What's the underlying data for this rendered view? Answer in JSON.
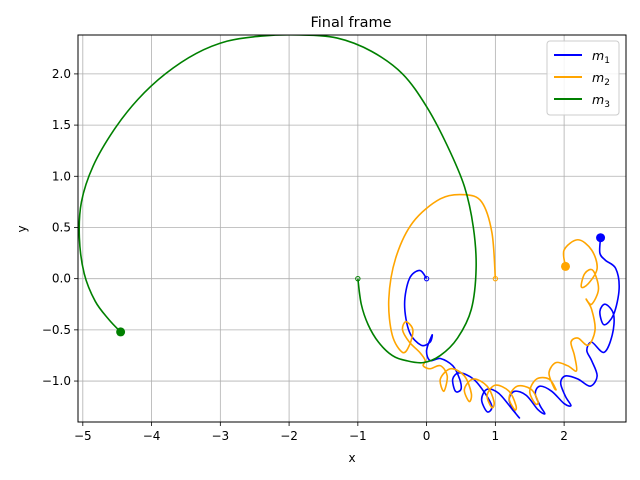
{
  "chart_data": {
    "type": "line",
    "title": "Final frame",
    "xlabel": "x",
    "ylabel": "y",
    "xlim": [
      -5.07,
      2.9
    ],
    "ylim": [
      -1.4,
      2.38
    ],
    "xticks": [
      -5,
      -4,
      -3,
      -2,
      -1,
      0,
      1,
      2
    ],
    "yticks": [
      -1.0,
      -0.5,
      0.0,
      0.5,
      1.0,
      1.5,
      2.0
    ],
    "xtick_labels": [
      "−5",
      "−4",
      "−3",
      "−2",
      "−1",
      "0",
      "1",
      "2"
    ],
    "ytick_labels": [
      "−1.0",
      "−0.5",
      "0.0",
      "0.5",
      "1.0",
      "1.5",
      "2.0"
    ],
    "grid": true,
    "legend_position": "top-right",
    "series": [
      {
        "name": "m",
        "subscript": "1",
        "color": "#0000ff",
        "start": [
          0.0,
          0.0
        ],
        "end": [
          2.53,
          0.4
        ],
        "x": [
          0.0,
          -0.1,
          -0.25,
          -0.32,
          -0.25,
          -0.08,
          0.05,
          0.08,
          0.0,
          0.05,
          0.2,
          0.38,
          0.48,
          0.5,
          0.42,
          0.38,
          0.48,
          0.68,
          0.85,
          0.95,
          0.88,
          0.8,
          0.88,
          1.05,
          1.25,
          1.35,
          1.28,
          1.2,
          1.28,
          1.45,
          1.62,
          1.72,
          1.65,
          1.58,
          1.65,
          1.82,
          2.0,
          2.1,
          2.02,
          1.95,
          2.02,
          2.2,
          2.38,
          2.48,
          2.4,
          2.33,
          2.4,
          2.58,
          2.7,
          2.72,
          2.6,
          2.52,
          2.58,
          2.72,
          2.8,
          2.75,
          2.6,
          2.52,
          2.53
        ],
        "y": [
          0.0,
          0.08,
          0.0,
          -0.25,
          -0.52,
          -0.65,
          -0.62,
          -0.55,
          -0.7,
          -0.8,
          -0.78,
          -0.85,
          -0.98,
          -1.08,
          -1.1,
          -0.98,
          -0.92,
          -0.98,
          -1.12,
          -1.25,
          -1.3,
          -1.18,
          -1.08,
          -1.12,
          -1.28,
          -1.36,
          -1.3,
          -1.18,
          -1.1,
          -1.14,
          -1.28,
          -1.32,
          -1.24,
          -1.12,
          -1.05,
          -1.1,
          -1.22,
          -1.24,
          -1.15,
          -1.02,
          -0.95,
          -0.98,
          -1.05,
          -0.95,
          -0.8,
          -0.7,
          -0.62,
          -0.72,
          -0.55,
          -0.35,
          -0.25,
          -0.32,
          -0.45,
          -0.35,
          -0.1,
          0.1,
          0.18,
          0.25,
          0.4
        ]
      },
      {
        "name": "m",
        "subscript": "2",
        "color": "#ffa500",
        "start": [
          1.0,
          0.0
        ],
        "end": [
          2.02,
          0.12
        ],
        "x": [
          1.0,
          0.95,
          0.8,
          0.55,
          0.2,
          -0.2,
          -0.45,
          -0.55,
          -0.5,
          -0.35,
          -0.25,
          -0.2,
          -0.3,
          -0.35,
          -0.25,
          -0.1,
          -0.02,
          -0.05,
          0.05,
          0.2,
          0.3,
          0.25,
          0.2,
          0.35,
          0.55,
          0.65,
          0.62,
          0.55,
          0.68,
          0.88,
          0.98,
          0.95,
          0.88,
          1.0,
          1.2,
          1.3,
          1.28,
          1.2,
          1.32,
          1.52,
          1.62,
          1.58,
          1.5,
          1.6,
          1.78,
          1.88,
          1.85,
          1.78,
          1.88,
          2.05,
          2.18,
          2.15,
          2.1,
          2.2,
          2.35,
          2.45,
          2.4,
          2.32,
          2.4,
          2.5,
          2.42,
          2.3,
          2.25,
          2.35,
          2.48,
          2.4,
          2.2,
          2.0,
          2.02
        ],
        "y": [
          0.0,
          0.45,
          0.75,
          0.82,
          0.78,
          0.55,
          0.2,
          -0.2,
          -0.55,
          -0.72,
          -0.65,
          -0.5,
          -0.42,
          -0.5,
          -0.62,
          -0.72,
          -0.8,
          -0.85,
          -0.88,
          -0.85,
          -0.95,
          -1.1,
          -0.98,
          -0.88,
          -0.95,
          -1.12,
          -1.2,
          -1.08,
          -0.98,
          -1.05,
          -1.2,
          -1.26,
          -1.14,
          -1.04,
          -1.1,
          -1.24,
          -1.28,
          -1.16,
          -1.05,
          -1.08,
          -1.2,
          -1.22,
          -1.1,
          -0.98,
          -0.98,
          -1.08,
          -1.06,
          -0.92,
          -0.82,
          -0.85,
          -0.9,
          -0.75,
          -0.62,
          -0.58,
          -0.65,
          -0.5,
          -0.3,
          -0.2,
          -0.25,
          -0.1,
          0.08,
          0.05,
          -0.08,
          -0.05,
          0.1,
          0.28,
          0.38,
          0.28,
          0.12
        ]
      },
      {
        "name": "m",
        "subscript": "3",
        "color": "#008000",
        "start": [
          -1.0,
          0.0
        ],
        "end": [
          -4.45,
          -0.52
        ],
        "x": [
          -1.0,
          -0.95,
          -0.85,
          -0.7,
          -0.5,
          -0.3,
          -0.05,
          0.2,
          0.45,
          0.65,
          0.72,
          0.68,
          0.55,
          0.3,
          0.0,
          -0.35,
          -0.8,
          -1.3,
          -1.85,
          -2.4,
          -2.9,
          -3.35,
          -3.8,
          -4.2,
          -4.55,
          -4.85,
          -5.02,
          -5.05,
          -4.98,
          -4.82,
          -4.62,
          -4.45
        ],
        "y": [
          0.0,
          -0.25,
          -0.45,
          -0.62,
          -0.75,
          -0.8,
          -0.82,
          -0.75,
          -0.58,
          -0.3,
          0.1,
          0.5,
          0.9,
          1.3,
          1.68,
          2.0,
          2.22,
          2.35,
          2.38,
          2.37,
          2.32,
          2.2,
          2.0,
          1.75,
          1.45,
          1.1,
          0.75,
          0.4,
          0.05,
          -0.22,
          -0.4,
          -0.52
        ]
      }
    ]
  }
}
